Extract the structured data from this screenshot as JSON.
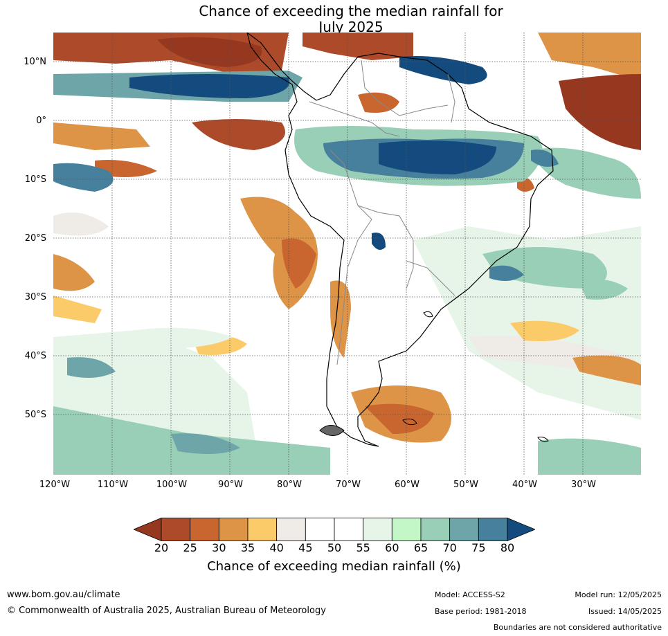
{
  "title": {
    "line1": "Chance of exceeding the median rainfall for",
    "line2": "July 2025"
  },
  "map": {
    "lat_labels": [
      "10°N",
      "0°",
      "10°S",
      "20°S",
      "30°S",
      "40°S",
      "50°S"
    ],
    "lon_labels": [
      "120°W",
      "110°W",
      "100°W",
      "90°W",
      "80°W",
      "70°W",
      "60°W",
      "50°W",
      "40°W",
      "30°W"
    ]
  },
  "colorbar": {
    "label": "Chance of exceeding median rainfall (%)",
    "ticks": [
      "20",
      "25",
      "30",
      "35",
      "40",
      "45",
      "50",
      "55",
      "60",
      "65",
      "70",
      "75",
      "80"
    ],
    "colors": [
      "#963820",
      "#ad4a29",
      "#c9652f",
      "#de9447",
      "#fccb69",
      "#efebe6",
      "#ffffff",
      "#ffffff",
      "#e7f4e8",
      "#c4f7c8",
      "#98cfb6",
      "#6ea5a9",
      "#46809c",
      "#134b7e"
    ]
  },
  "footer": {
    "url": "www.bom.gov.au/climate",
    "copyright": "© Commonwealth of Australia 2025, Australian Bureau of Meteorology",
    "model": "Model: ACCESS-S2",
    "base_period": "Base period: 1981-2018",
    "model_run": "Model run: 12/05/2025",
    "issued": "Issued: 14/05/2025",
    "boundaries": "Boundaries are not considered authoritative"
  }
}
